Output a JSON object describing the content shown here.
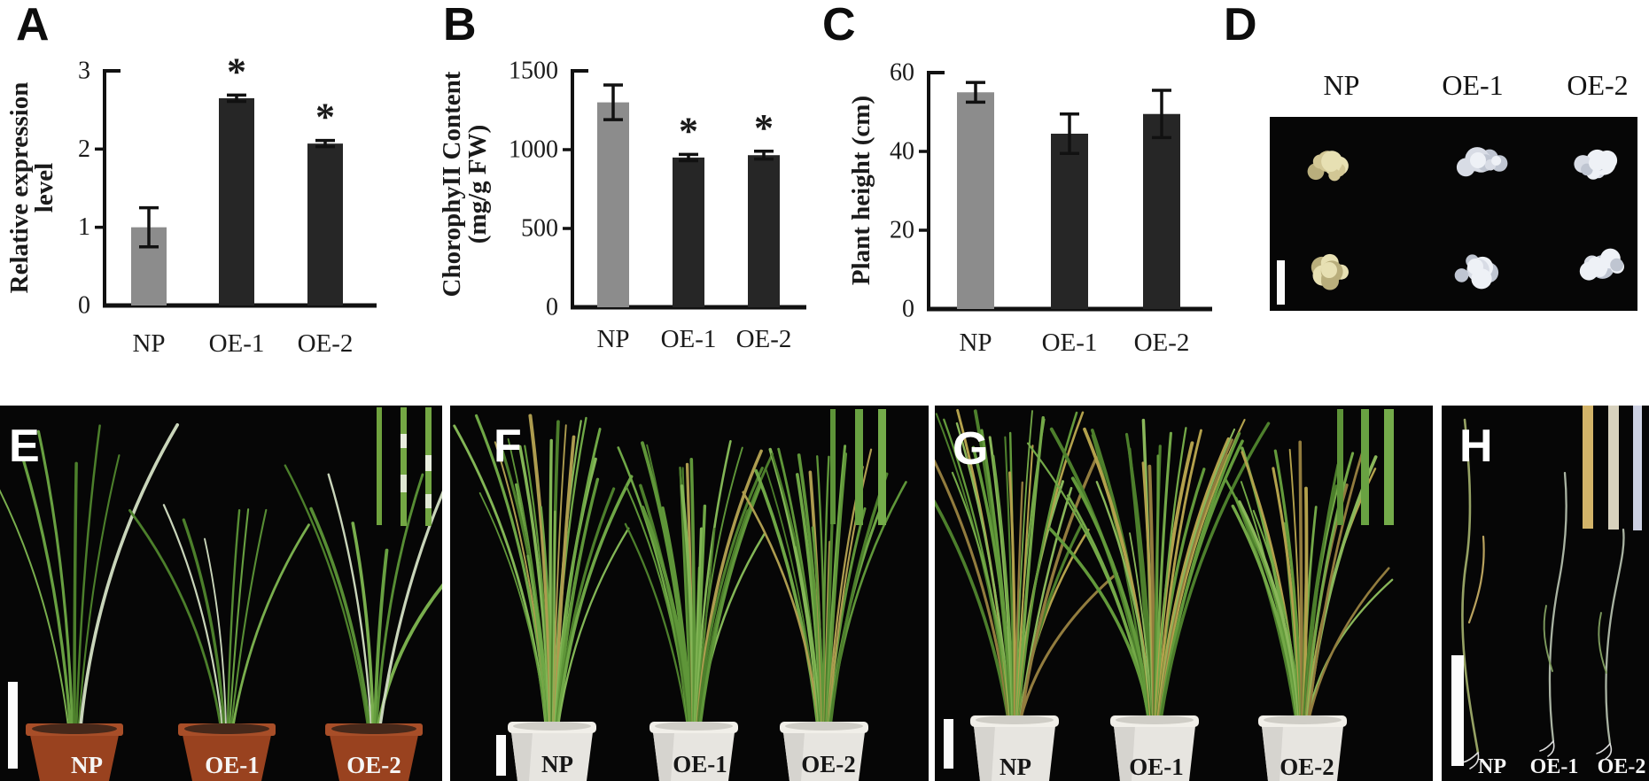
{
  "panels": {
    "a": {
      "letter": "A"
    },
    "b": {
      "letter": "B"
    },
    "c": {
      "letter": "C"
    },
    "d": {
      "letter": "D"
    },
    "e": {
      "letter": "E"
    },
    "f": {
      "letter": "F"
    },
    "g": {
      "letter": "G"
    },
    "h": {
      "letter": "H"
    }
  },
  "chart_data": [
    {
      "panel": "A",
      "type": "bar",
      "title": "",
      "xlabel": "",
      "ylabel": "Relative expression level",
      "ylabel_lines": [
        "Relative expression",
        "level"
      ],
      "categories": [
        "NP",
        "OE-1",
        "OE-2"
      ],
      "values": [
        1.0,
        2.65,
        2.07
      ],
      "error_bars": [
        0.25,
        0.04,
        0.04
      ],
      "significance": [
        "",
        "*",
        "*"
      ],
      "ylim": [
        0,
        3
      ],
      "yticks": [
        0,
        1,
        2,
        3
      ],
      "bar_colors": [
        "#8c8c8c",
        "#262626",
        "#262626"
      ],
      "grid": false,
      "legend": false
    },
    {
      "panel": "B",
      "type": "bar",
      "title": "",
      "xlabel": "",
      "ylabel": "ChorophyII Content (mg/g FW)",
      "ylabel_lines": [
        "ChorophyII Content",
        "(mg/g FW)"
      ],
      "categories": [
        "NP",
        "OE-1",
        "OE-2"
      ],
      "values": [
        1300,
        950,
        965
      ],
      "error_bars": [
        110,
        20,
        25
      ],
      "significance": [
        "",
        "*",
        "*"
      ],
      "ylim": [
        0,
        1500
      ],
      "yticks": [
        0,
        500,
        1000,
        1500
      ],
      "bar_colors": [
        "#8c8c8c",
        "#262626",
        "#262626"
      ],
      "grid": false,
      "legend": false
    },
    {
      "panel": "C",
      "type": "bar",
      "title": "",
      "xlabel": "",
      "ylabel": "Plant height (cm)",
      "ylabel_lines": [
        "Plant height (cm)"
      ],
      "categories": [
        "NP",
        "OE-1",
        "OE-2"
      ],
      "values": [
        55,
        44.5,
        49.5
      ],
      "error_bars": [
        2.5,
        5,
        6
      ],
      "significance": [
        "",
        "",
        ""
      ],
      "ylim": [
        0,
        60
      ],
      "yticks": [
        0,
        20,
        40,
        60
      ],
      "bar_colors": [
        "#8c8c8c",
        "#262626",
        "#262626"
      ],
      "grid": false,
      "legend": false
    }
  ],
  "panel_d": {
    "column_labels": [
      "NP",
      "OE-1",
      "OE-2"
    ]
  },
  "photo_labels": {
    "e": [
      "NP",
      "OE-1",
      "OE-2"
    ],
    "f": [
      "NP",
      "OE-1",
      "OE-2"
    ],
    "g": [
      "NP",
      "OE-1",
      "OE-2"
    ],
    "h": [
      "NP",
      "OE-1",
      "OE-2"
    ]
  },
  "colors": {
    "gray_bar": "#8c8c8c",
    "black_bar": "#262626",
    "axis": "#111111",
    "photo_background": "#060606",
    "leaf_green": "#68a041",
    "leaf_dark_green": "#4d7f2c",
    "leaf_yellow": "#b3a14c",
    "pot_terracotta": "#99421f",
    "bucket_white": "#e7e5e0",
    "callus_np": "#d2c795",
    "callus_oe": "#d8dce5",
    "h_inset_tan": "#d3b469",
    "h_inset_cream": "#d8d2be",
    "h_inset_pale": "#ccd0e2",
    "scale_bar": "#fcfcfc"
  }
}
